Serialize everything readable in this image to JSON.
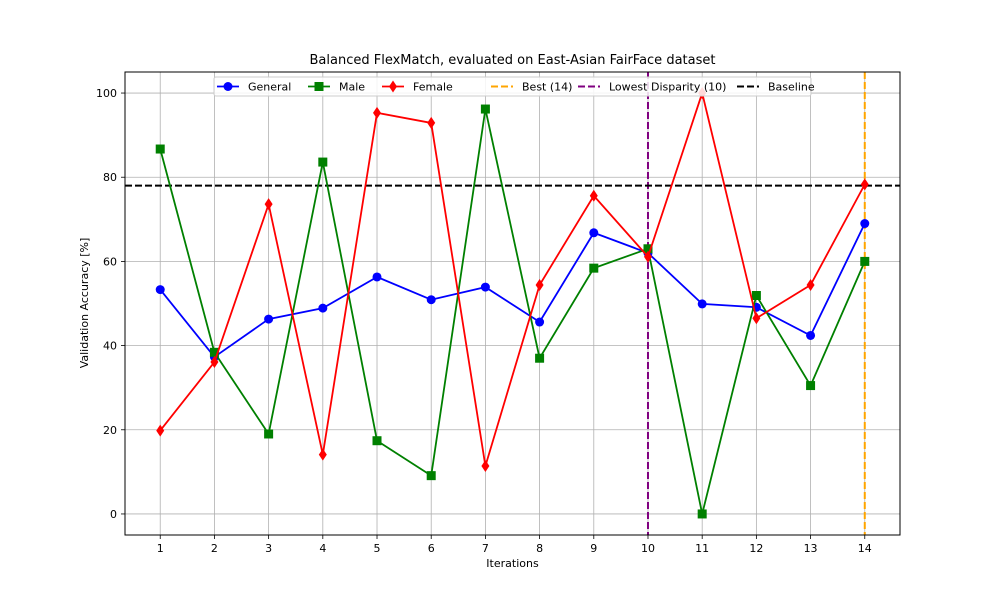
{
  "chart_data": {
    "type": "line",
    "title": "Balanced FlexMatch, evaluated on East-Asian FairFace dataset",
    "xlabel": "Iterations",
    "ylabel": "Validation Accuracy [%]",
    "x": [
      1,
      2,
      3,
      4,
      5,
      6,
      7,
      8,
      9,
      10,
      11,
      12,
      13,
      14
    ],
    "xlim": [
      0.35,
      14.65
    ],
    "ylim": [
      -5,
      105
    ],
    "yticks": [
      0,
      20,
      40,
      60,
      80,
      100
    ],
    "grid": true,
    "legend_position": "top",
    "series": [
      {
        "name": "General",
        "color": "#0000ff",
        "marker": "circle",
        "values": [
          53.3,
          37.3,
          46.3,
          48.9,
          56.3,
          50.9,
          53.9,
          45.6,
          66.8,
          62.0,
          49.9,
          49.1,
          42.4,
          69.0
        ]
      },
      {
        "name": "Male",
        "color": "#008000",
        "marker": "square",
        "values": [
          86.7,
          38.4,
          19.0,
          83.6,
          17.4,
          9.1,
          96.2,
          37.0,
          58.4,
          63.0,
          0.0,
          51.9,
          30.5,
          60.0
        ]
      },
      {
        "name": "Female",
        "color": "#ff0000",
        "marker": "diamond",
        "values": [
          19.8,
          36.1,
          73.6,
          14.1,
          95.3,
          92.9,
          11.4,
          54.4,
          75.6,
          61.1,
          100.0,
          46.5,
          54.4,
          78.3
        ]
      }
    ],
    "reference_lines": [
      {
        "name": "Best (14)",
        "orientation": "vertical",
        "value": 14,
        "color": "#ffa500",
        "style": "dashed"
      },
      {
        "name": "Lowest Disparity (10)",
        "orientation": "vertical",
        "value": 10,
        "color": "#800080",
        "style": "dashed"
      },
      {
        "name": "Baseline",
        "orientation": "horizontal",
        "value": 78,
        "color": "#000000",
        "style": "dashed"
      }
    ]
  }
}
